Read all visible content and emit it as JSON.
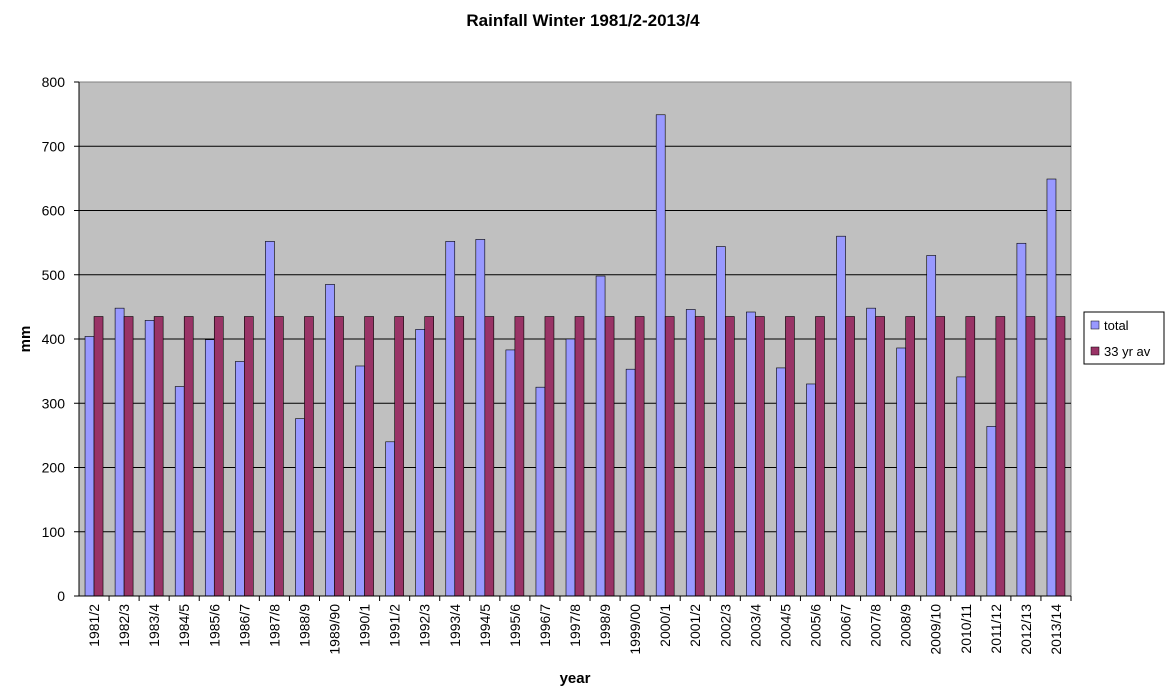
{
  "chart_data": {
    "type": "bar",
    "title": "Rainfall Winter 1981/2-2013/4",
    "xlabel": "year",
    "ylabel": "mm",
    "ylim": [
      0,
      800
    ],
    "yticks": [
      0,
      100,
      200,
      300,
      400,
      500,
      600,
      700,
      800
    ],
    "grid": true,
    "legend_position": "right",
    "categories": [
      "1981/2",
      "1982/3",
      "1983/4",
      "1984/5",
      "1985/6",
      "1986/7",
      "1987/8",
      "1988/9",
      "1989/90",
      "1990/1",
      "1991/2",
      "1992/3",
      "1993/4",
      "1994/5",
      "1995/6",
      "1996/7",
      "1997/8",
      "1998/9",
      "1999/00",
      "2000/1",
      "2001/2",
      "2002/3",
      "2003/4",
      "2004/5",
      "2005/6",
      "2006/7",
      "2007/8",
      "2008/9",
      "2009/10",
      "2010/11",
      "2011/12",
      "2012/13",
      "2013/14"
    ],
    "series": [
      {
        "name": "total",
        "color": "#9999ff",
        "values": [
          404,
          448,
          429,
          326,
          399,
          365,
          552,
          276,
          485,
          358,
          240,
          415,
          552,
          555,
          383,
          325,
          400,
          498,
          353,
          749,
          446,
          544,
          442,
          355,
          330,
          560,
          448,
          386,
          530,
          341,
          264,
          549,
          649
        ]
      },
      {
        "name": "33 yr av",
        "color": "#993366",
        "values": [
          435,
          435,
          435,
          435,
          435,
          435,
          435,
          435,
          435,
          435,
          435,
          435,
          435,
          435,
          435,
          435,
          435,
          435,
          435,
          435,
          435,
          435,
          435,
          435,
          435,
          435,
          435,
          435,
          435,
          435,
          435,
          435,
          435
        ]
      }
    ],
    "colors": {
      "plot_background": "#c0c0c0",
      "gridline": "#000000"
    }
  }
}
